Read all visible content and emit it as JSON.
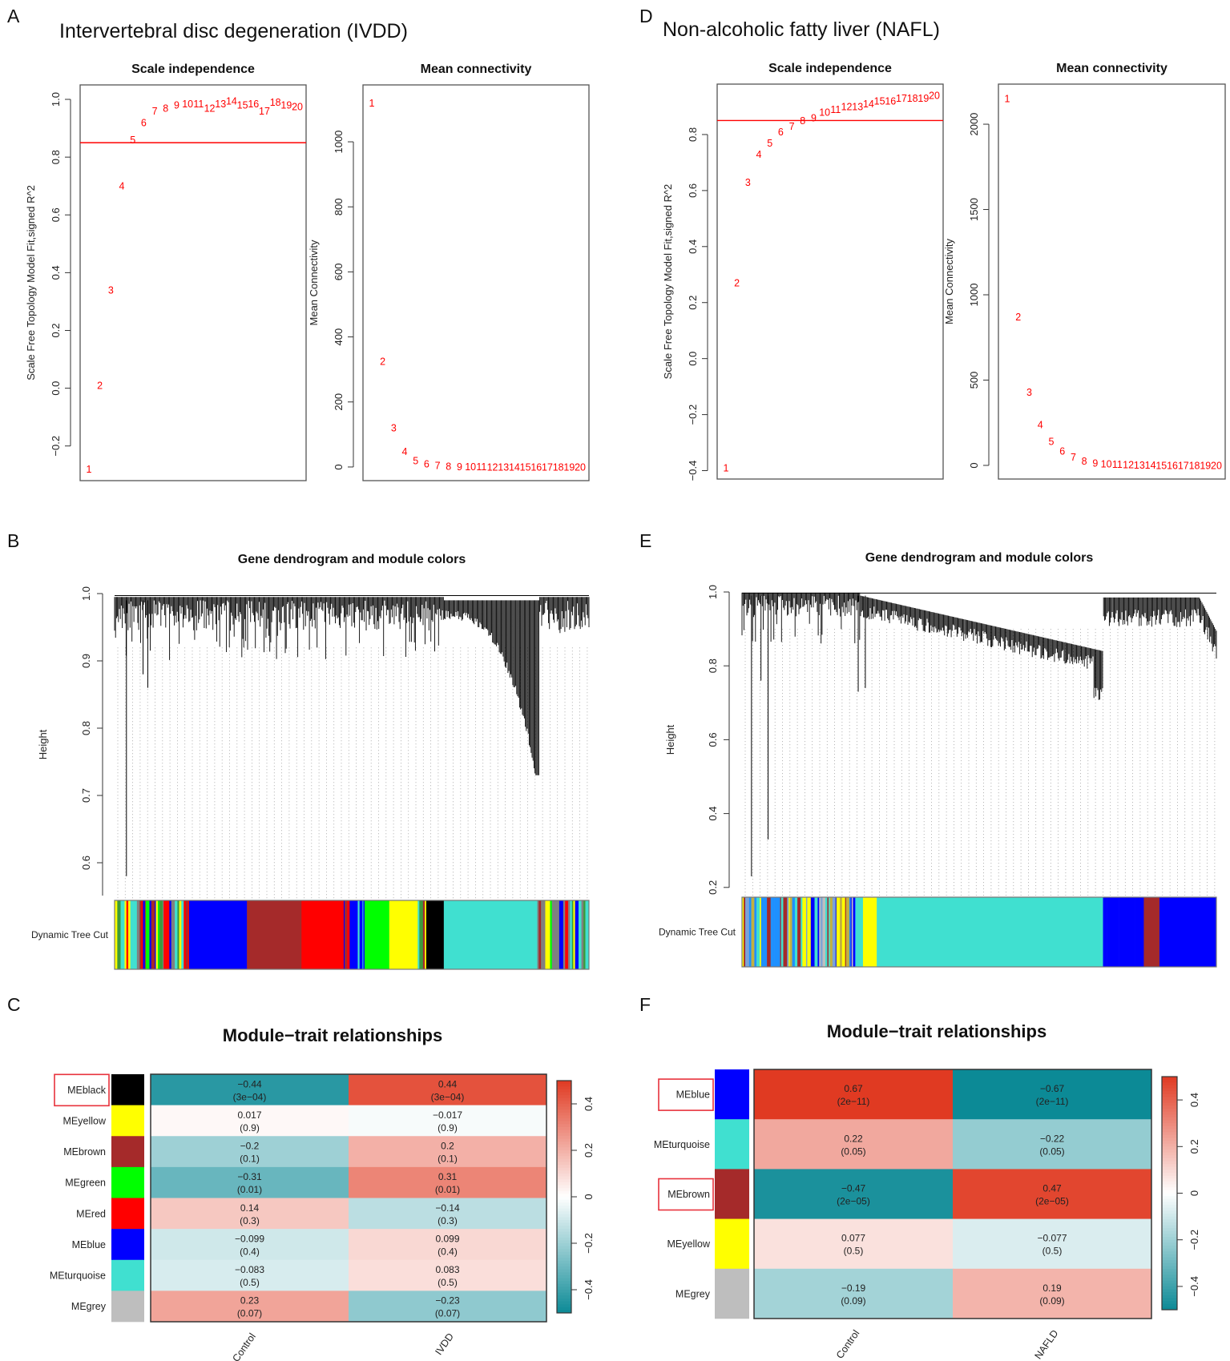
{
  "figure": {
    "panel_a_letter": "A",
    "panel_b_letter": "B",
    "panel_c_letter": "C",
    "panel_d_letter": "D",
    "panel_e_letter": "E",
    "panel_f_letter": "F",
    "left_title": "Intervertebral disc degeneration (IVDD)",
    "right_title": "Non-alcoholic fatty liver (NAFL)"
  },
  "chart_data": {
    "A_scale_independence": {
      "type": "scatter",
      "title": "Scale independence",
      "ylabel": "Scale Free Topology Model Fit,signed R^2",
      "xlim": [
        0.2,
        20.8
      ],
      "ylim": [
        -0.32,
        1.05
      ],
      "yticks": [
        -0.2,
        0.0,
        0.2,
        0.4,
        0.6,
        0.8,
        1.0
      ],
      "ytick_labels": [
        "−0.2",
        "0.0",
        "0.2",
        "0.4",
        "0.6",
        "0.8",
        "1.0"
      ],
      "hline": 0.85,
      "hline_color": "#ff0000",
      "x": [
        1,
        2,
        3,
        4,
        5,
        6,
        7,
        8,
        9,
        10,
        11,
        12,
        13,
        14,
        15,
        16,
        17,
        18,
        19,
        20
      ],
      "labels": [
        "1",
        "2",
        "3",
        "4",
        "5",
        "6",
        "7",
        "8",
        "9",
        "10",
        "11",
        "12",
        "13",
        "14",
        "15",
        "16",
        "17",
        "18",
        "19",
        "20"
      ],
      "y": [
        -0.28,
        0.01,
        0.34,
        0.7,
        0.86,
        0.92,
        0.96,
        0.97,
        0.98,
        0.985,
        0.985,
        0.97,
        0.985,
        0.995,
        0.98,
        0.985,
        0.96,
        0.99,
        0.98,
        0.975
      ]
    },
    "A_mean_connectivity": {
      "type": "scatter",
      "title": "Mean connectivity",
      "ylabel": "Mean Connectivity",
      "xlim": [
        0.2,
        20.8
      ],
      "ylim": [
        -42,
        1175
      ],
      "yticks": [
        0,
        200,
        400,
        600,
        800,
        1000
      ],
      "ytick_labels": [
        "0",
        "200",
        "400",
        "600",
        "800",
        "1000"
      ],
      "x": [
        1,
        2,
        3,
        4,
        5,
        6,
        7,
        8,
        9,
        10,
        11,
        12,
        13,
        14,
        15,
        16,
        17,
        18,
        19,
        20
      ],
      "labels": [
        "1",
        "2",
        "3",
        "4",
        "5",
        "6",
        "7",
        "8",
        "9",
        "10",
        "11",
        "12",
        "13",
        "14",
        "15",
        "16",
        "17",
        "18",
        "19",
        "20"
      ],
      "y": [
        1120,
        325,
        120,
        48,
        20,
        10,
        5,
        2,
        1,
        1,
        1,
        0,
        0,
        0,
        0,
        0,
        0,
        0,
        0,
        0
      ]
    },
    "D_scale_independence": {
      "type": "scatter",
      "title": "Scale independence",
      "ylabel": "Scale Free Topology Model Fit,signed R^2",
      "xlim": [
        0.2,
        20.8
      ],
      "ylim": [
        -0.43,
        0.98
      ],
      "yticks": [
        -0.4,
        -0.2,
        0.0,
        0.2,
        0.4,
        0.6,
        0.8
      ],
      "ytick_labels": [
        "−0.4",
        "−0.2",
        "0.0",
        "0.2",
        "0.4",
        "0.6",
        "0.8"
      ],
      "hline": 0.85,
      "hline_color": "#ff0000",
      "x": [
        1,
        2,
        3,
        4,
        5,
        6,
        7,
        8,
        9,
        10,
        11,
        12,
        13,
        14,
        15,
        16,
        17,
        18,
        19,
        20
      ],
      "labels": [
        "1",
        "2",
        "3",
        "4",
        "5",
        "6",
        "7",
        "8",
        "9",
        "10",
        "11",
        "12",
        "13",
        "14",
        "15",
        "16",
        "17",
        "18",
        "19",
        "20"
      ],
      "y": [
        -0.39,
        0.27,
        0.63,
        0.73,
        0.77,
        0.81,
        0.83,
        0.85,
        0.86,
        0.88,
        0.89,
        0.9,
        0.9,
        0.91,
        0.92,
        0.92,
        0.93,
        0.93,
        0.93,
        0.94
      ]
    },
    "D_mean_connectivity": {
      "type": "scatter",
      "title": "Mean connectivity",
      "ylabel": "Mean Connectivity",
      "xlim": [
        0.2,
        20.8
      ],
      "ylim": [
        -80,
        2235
      ],
      "yticks": [
        0,
        500,
        1000,
        1500,
        2000
      ],
      "ytick_labels": [
        "0",
        "500",
        "1000",
        "1500",
        "2000"
      ],
      "x": [
        1,
        2,
        3,
        4,
        5,
        6,
        7,
        8,
        9,
        10,
        11,
        12,
        13,
        14,
        15,
        16,
        17,
        18,
        19,
        20
      ],
      "labels": [
        "1",
        "2",
        "3",
        "4",
        "5",
        "6",
        "7",
        "8",
        "9",
        "10",
        "11",
        "12",
        "13",
        "14",
        "15",
        "16",
        "17",
        "18",
        "19",
        "20"
      ],
      "y": [
        2150,
        870,
        430,
        240,
        140,
        85,
        50,
        25,
        15,
        10,
        6,
        4,
        3,
        2,
        1,
        1,
        1,
        0,
        0,
        0
      ]
    },
    "B_dendrogram": {
      "type": "dendrogram",
      "title": "Gene dendrogram and module colors",
      "ylabel": "Height",
      "color_row_label": "Dynamic Tree Cut",
      "yticks": [
        0.6,
        0.7,
        0.8,
        0.9,
        1.0
      ],
      "ytick_labels": [
        "0.6",
        "0.7",
        "0.8",
        "0.9",
        "1.0"
      ],
      "module_segments": [
        {
          "color": "mixed",
          "from": 0.0,
          "to": 0.157
        },
        {
          "color": "#0000ff",
          "from": 0.157,
          "to": 0.279
        },
        {
          "color": "#a52a2a",
          "from": 0.279,
          "to": 0.394
        },
        {
          "color": "#ff0000",
          "from": 0.394,
          "to": 0.483
        },
        {
          "color": "mixed",
          "from": 0.483,
          "to": 0.527
        },
        {
          "color": "#00ff00",
          "from": 0.527,
          "to": 0.579
        },
        {
          "color": "#ffff00",
          "from": 0.579,
          "to": 0.639
        },
        {
          "color": "mixed",
          "from": 0.639,
          "to": 0.657
        },
        {
          "color": "#000000",
          "from": 0.657,
          "to": 0.694
        },
        {
          "color": "#40e0d0",
          "from": 0.694,
          "to": 0.891
        },
        {
          "color": "mixed",
          "from": 0.891,
          "to": 1.0
        }
      ],
      "mixed_palette": [
        "#00ff00",
        "#40e0d0",
        "#0000ff",
        "#a52a2a",
        "#ff0000",
        "#ffff00",
        "#808080",
        "#3c9a3c"
      ]
    },
    "E_dendrogram": {
      "type": "dendrogram",
      "title": "Gene dendrogram and module colors",
      "ylabel": "Height",
      "color_row_label": "Dynamic Tree Cut",
      "yticks": [
        0.2,
        0.4,
        0.6,
        0.8,
        1.0
      ],
      "ytick_labels": [
        "0.2",
        "0.4",
        "0.6",
        "0.8",
        "1.0"
      ],
      "module_segments": [
        {
          "color": "mixed",
          "from": 0.0,
          "to": 0.24
        },
        {
          "color": "#40e0d0",
          "from": 0.24,
          "to": 0.255
        },
        {
          "color": "#ffff00",
          "from": 0.255,
          "to": 0.284
        },
        {
          "color": "#40e0d0",
          "from": 0.284,
          "to": 0.761
        },
        {
          "color": "mixed_blue",
          "from": 0.761,
          "to": 0.847
        },
        {
          "color": "#a52a2a",
          "from": 0.847,
          "to": 0.88
        },
        {
          "color": "#0000ff",
          "from": 0.88,
          "to": 1.0
        }
      ],
      "mixed_palette": [
        "#bebebe",
        "#7aa3d6",
        "#0000ff",
        "#40e0d0",
        "#a52a2a",
        "#ffff00",
        "#c2b040",
        "#1e90ff"
      ]
    },
    "C_module_trait": {
      "type": "heatmap",
      "title": "Module−trait relationships",
      "columns": [
        "Control",
        "IVDD"
      ],
      "scale_range": [
        -0.5,
        0.5
      ],
      "colorbar_ticks": [
        -0.4,
        -0.2,
        0,
        0.2,
        0.4
      ],
      "colorbar_tick_labels": [
        "−0.4",
        "−0.2",
        "0",
        "0.2",
        "0.4"
      ],
      "low_color": "#0c8a96",
      "mid_color": "#ffffff",
      "high_color": "#e03a22",
      "rows": [
        {
          "module": "MEblack",
          "color": "#000000",
          "highlighted": true,
          "cells": [
            {
              "r": -0.44,
              "r_label": "−0.44",
              "p_label": "(3e−04)"
            },
            {
              "r": 0.44,
              "r_label": "0.44",
              "p_label": "(3e−04)"
            }
          ]
        },
        {
          "module": "MEyellow",
          "color": "#ffff00",
          "highlighted": false,
          "cells": [
            {
              "r": 0.017,
              "r_label": "0.017",
              "p_label": "(0.9)"
            },
            {
              "r": -0.017,
              "r_label": "−0.017",
              "p_label": "(0.9)"
            }
          ]
        },
        {
          "module": "MEbrown",
          "color": "#a52a2a",
          "highlighted": false,
          "cells": [
            {
              "r": -0.2,
              "r_label": "−0.2",
              "p_label": "(0.1)"
            },
            {
              "r": 0.2,
              "r_label": "0.2",
              "p_label": "(0.1)"
            }
          ]
        },
        {
          "module": "MEgreen",
          "color": "#00ff00",
          "highlighted": false,
          "cells": [
            {
              "r": -0.31,
              "r_label": "−0.31",
              "p_label": "(0.01)"
            },
            {
              "r": 0.31,
              "r_label": "0.31",
              "p_label": "(0.01)"
            }
          ]
        },
        {
          "module": "MEred",
          "color": "#ff0000",
          "highlighted": false,
          "cells": [
            {
              "r": 0.14,
              "r_label": "0.14",
              "p_label": "(0.3)"
            },
            {
              "r": -0.14,
              "r_label": "−0.14",
              "p_label": "(0.3)"
            }
          ]
        },
        {
          "module": "MEblue",
          "color": "#0000ff",
          "highlighted": false,
          "cells": [
            {
              "r": -0.099,
              "r_label": "−0.099",
              "p_label": "(0.4)"
            },
            {
              "r": 0.099,
              "r_label": "0.099",
              "p_label": "(0.4)"
            }
          ]
        },
        {
          "module": "MEturquoise",
          "color": "#40e0d0",
          "highlighted": false,
          "cells": [
            {
              "r": -0.083,
              "r_label": "−0.083",
              "p_label": "(0.5)"
            },
            {
              "r": 0.083,
              "r_label": "0.083",
              "p_label": "(0.5)"
            }
          ]
        },
        {
          "module": "MEgrey",
          "color": "#bebebe",
          "highlighted": false,
          "cells": [
            {
              "r": 0.23,
              "r_label": "0.23",
              "p_label": "(0.07)"
            },
            {
              "r": -0.23,
              "r_label": "−0.23",
              "p_label": "(0.07)"
            }
          ]
        }
      ]
    },
    "F_module_trait": {
      "type": "heatmap",
      "title": "Module−trait relationships",
      "columns": [
        "Control",
        "NAFLD"
      ],
      "scale_range": [
        -0.5,
        0.5
      ],
      "colorbar_ticks": [
        -0.4,
        -0.2,
        0,
        0.2,
        0.4
      ],
      "colorbar_tick_labels": [
        "−0.4",
        "−0.2",
        "0",
        "0.2",
        "0.4"
      ],
      "low_color": "#0c8a96",
      "mid_color": "#ffffff",
      "high_color": "#e03a22",
      "rows": [
        {
          "module": "MEblue",
          "color": "#0000ff",
          "highlighted": true,
          "cells": [
            {
              "r": 0.67,
              "r_label": "0.67",
              "p_label": "(2e−11)"
            },
            {
              "r": -0.67,
              "r_label": "−0.67",
              "p_label": "(2e−11)"
            }
          ]
        },
        {
          "module": "MEturquoise",
          "color": "#40e0d0",
          "highlighted": false,
          "cells": [
            {
              "r": 0.22,
              "r_label": "0.22",
              "p_label": "(0.05)"
            },
            {
              "r": -0.22,
              "r_label": "−0.22",
              "p_label": "(0.05)"
            }
          ]
        },
        {
          "module": "MEbrown",
          "color": "#a52a2a",
          "highlighted": true,
          "cells": [
            {
              "r": -0.47,
              "r_label": "−0.47",
              "p_label": "(2e−05)"
            },
            {
              "r": 0.47,
              "r_label": "0.47",
              "p_label": "(2e−05)"
            }
          ]
        },
        {
          "module": "MEyellow",
          "color": "#ffff00",
          "highlighted": false,
          "cells": [
            {
              "r": 0.077,
              "r_label": "0.077",
              "p_label": "(0.5)"
            },
            {
              "r": -0.077,
              "r_label": "−0.077",
              "p_label": "(0.5)"
            }
          ]
        },
        {
          "module": "MEgrey",
          "color": "#bebebe",
          "highlighted": false,
          "cells": [
            {
              "r": -0.19,
              "r_label": "−0.19",
              "p_label": "(0.09)"
            },
            {
              "r": 0.19,
              "r_label": "0.19",
              "p_label": "(0.09)"
            }
          ]
        }
      ]
    }
  }
}
